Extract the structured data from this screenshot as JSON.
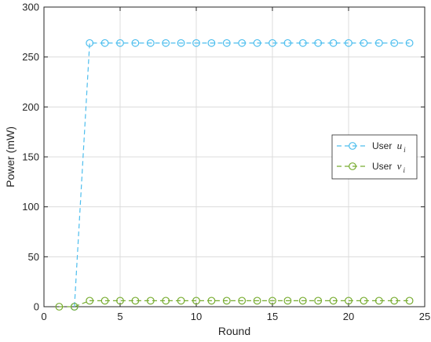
{
  "chart_data": {
    "type": "line",
    "xlabel": "Round",
    "ylabel": "Power (mW)",
    "xlim": [
      0,
      25
    ],
    "ylim": [
      0,
      300
    ],
    "xticks": [
      0,
      5,
      10,
      15,
      20,
      25
    ],
    "yticks": [
      0,
      50,
      100,
      150,
      200,
      250,
      300
    ],
    "grid": true,
    "legend_position": "right",
    "series": [
      {
        "name": "User u_i",
        "legend_prefix": "User",
        "legend_var": "u",
        "legend_sub": "i",
        "color": "#4DBEEE",
        "marker": "circle",
        "line_style": "dashed",
        "x": [
          2,
          3,
          4,
          5,
          6,
          7,
          8,
          9,
          10,
          11,
          12,
          13,
          14,
          15,
          16,
          17,
          18,
          19,
          20,
          21,
          22,
          23,
          24
        ],
        "y": [
          0,
          264,
          264,
          264,
          264,
          264,
          264,
          264,
          264,
          264,
          264,
          264,
          264,
          264,
          264,
          264,
          264,
          264,
          264,
          264,
          264,
          264,
          264
        ]
      },
      {
        "name": "User v_i",
        "legend_prefix": "User",
        "legend_var": "v",
        "legend_sub": "i",
        "color": "#77AC30",
        "marker": "circle",
        "line_style": "dashed",
        "x": [
          1,
          2,
          3,
          4,
          5,
          6,
          7,
          8,
          9,
          10,
          11,
          12,
          13,
          14,
          15,
          16,
          17,
          18,
          19,
          20,
          21,
          22,
          23,
          24
        ],
        "y": [
          0,
          0,
          6,
          6,
          6,
          6,
          6,
          6,
          6,
          6,
          6,
          6,
          6,
          6,
          6,
          6,
          6,
          6,
          6,
          6,
          6,
          6,
          6,
          6
        ]
      }
    ]
  }
}
